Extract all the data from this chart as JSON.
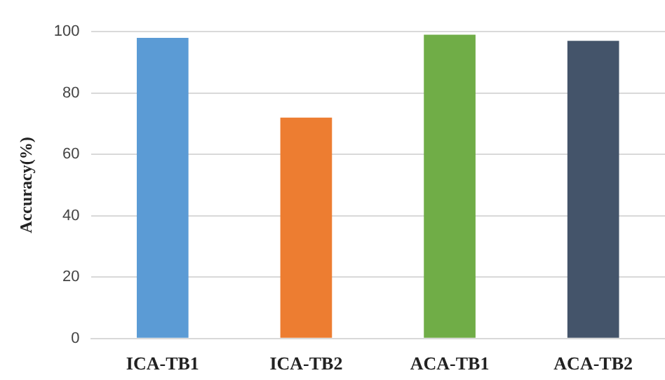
{
  "chart_data": {
    "type": "bar",
    "ylabel": "Accuracy(%)",
    "categories": [
      "ICA-TB1",
      "ICA-TB2",
      "ACA-TB1",
      "ACA-TB2"
    ],
    "values": [
      98,
      72,
      99,
      97
    ],
    "colors": [
      "#5b9bd5",
      "#ed7d31",
      "#70ad47",
      "#44546a"
    ],
    "ylim": [
      0,
      100
    ],
    "yticks": [
      0,
      20,
      40,
      60,
      80,
      100
    ],
    "grid": "y"
  }
}
